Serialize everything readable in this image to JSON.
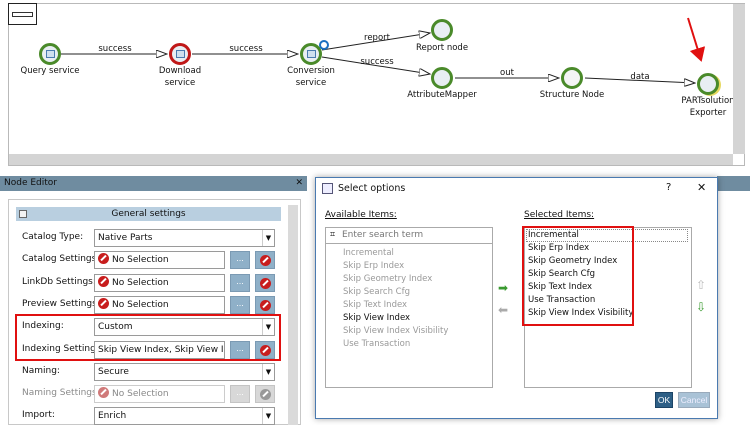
{
  "workflow": {
    "nodes": [
      {
        "label": "Query service",
        "status": "ok"
      },
      {
        "label": "Download service",
        "status": "error"
      },
      {
        "label": "Conversion service",
        "status": "ok"
      },
      {
        "label": "Report node",
        "status": "ok"
      },
      {
        "label": "AttributeMapper",
        "status": "ok"
      },
      {
        "label": "Structure Node",
        "status": "ok"
      },
      {
        "label": "PARTsolution Exporter",
        "status": "ok"
      }
    ],
    "edges": [
      "success",
      "success",
      "report",
      "success",
      "out",
      "data"
    ],
    "colors": {
      "ok": "#4a8a2a",
      "error": "#c01818",
      "highlight_arrow": "#e01010"
    }
  },
  "node_editor": {
    "title": "Node Editor",
    "section": "General settings",
    "rows": [
      {
        "label": "Catalog Type:",
        "value": "Native Parts",
        "type": "dropdown"
      },
      {
        "label": "Catalog Settings:",
        "value": "No Selection",
        "type": "picker"
      },
      {
        "label": "LinkDb Settings:",
        "value": "No Selection",
        "type": "picker"
      },
      {
        "label": "Preview Settings:",
        "value": "No Selection",
        "type": "picker"
      },
      {
        "label": "Indexing:",
        "value": "Custom",
        "type": "dropdown"
      },
      {
        "label": "Indexing Settings:",
        "value": "Skip View Index, Skip View Index Visibility",
        "type": "picker"
      },
      {
        "label": "Naming:",
        "value": "Secure",
        "type": "dropdown"
      },
      {
        "label": "Naming Settings:",
        "value": "No Selection",
        "type": "picker",
        "disabled": true
      },
      {
        "label": "Import:",
        "value": "Enrich",
        "type": "dropdown"
      }
    ],
    "browse_label": "..."
  },
  "dialog": {
    "title": "Select options",
    "help": "?",
    "close": "✕",
    "available_label": "Available Items:",
    "search_placeholder": "Enter search term",
    "available_items": [
      "Incremental",
      "Skip Erp Index",
      "Skip Geometry Index",
      "Skip Search Cfg",
      "Skip Text Index",
      "Skip View Index",
      "Skip View Index Visibility",
      "Use Transaction"
    ],
    "selected_label": "Selected Items:",
    "selected_items": [
      "Incremental",
      "Skip Erp Index",
      "Skip Geometry Index",
      "Skip Search Cfg",
      "Skip Text Index",
      "Use Transaction",
      "Skip View Index Visibility"
    ],
    "ok": "OK",
    "cancel": "Cancel"
  }
}
